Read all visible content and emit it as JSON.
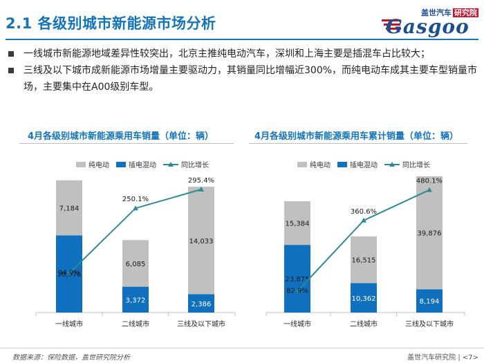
{
  "header": {
    "title": "2.1 各级别城市新能源市场分析",
    "logo_top_text": "盖世汽车",
    "logo_top_highlight": "研究院",
    "logo_word": "Gasgoo"
  },
  "bullets": [
    "一线城市新能源地域差异性较突出，北京主推纯电动汽车，深圳和上海主要是插混车占比较大；",
    "三线及以下城市成新能源市场增量主要驱动力，其销量同比增幅近300%，而纯电动车成其主要车型销量市场，主要集中在A00级别车型。"
  ],
  "colors": {
    "bev": "#c0c0c0",
    "phev": "#1070c0",
    "growth": "#2a8a96",
    "title": "#1474b9"
  },
  "chart_data": [
    {
      "type": "bar",
      "stacked": true,
      "title": "4月各级别城市新能源乘用车销量（单位：辆）",
      "categories": [
        "一线城市",
        "二线城市",
        "三线及以下城市"
      ],
      "legend": [
        "纯电动",
        "插电混动",
        "同比增长"
      ],
      "series": [
        {
          "name": "插电混动",
          "values": [
            10076,
            3372,
            2386
          ],
          "labels": [
            "10,076",
            "3,372",
            "2,386"
          ]
        },
        {
          "name": "纯电动",
          "values": [
            7184,
            6085,
            14033
          ],
          "labels": [
            "7,184",
            "6,085",
            "14,033"
          ]
        }
      ],
      "line": {
        "name": "同比增长",
        "values": [
          94.0,
          250.1,
          295.4
        ],
        "labels": [
          "94.0%",
          "250.1%",
          "295.4%"
        ]
      },
      "ylim": [
        0,
        18500
      ],
      "line_ylim": [
        0,
        340
      ]
    },
    {
      "type": "bar",
      "stacked": true,
      "title": "4月各级别城市新能源乘用车累计销量（单位：辆）",
      "categories": [
        "一线城市",
        "二线城市",
        "三线及以下城市"
      ],
      "legend": [
        "纯电动",
        "插电混动",
        "同比增长"
      ],
      "series": [
        {
          "name": "插电混动",
          "values": [
            23875,
            10362,
            8194
          ],
          "labels": [
            "23,875",
            "10,362",
            "8,194"
          ]
        },
        {
          "name": "纯电动",
          "values": [
            15384,
            16515,
            39876
          ],
          "labels": [
            "15,384",
            "16,515",
            "39,876"
          ]
        }
      ],
      "line": {
        "name": "同比增长",
        "values": [
          82.9,
          360.6,
          480.1
        ],
        "labels": [
          "82.9%",
          "360.6%",
          "480.1%"
        ]
      },
      "ylim": [
        0,
        50000
      ],
      "line_ylim": [
        0,
        555
      ]
    }
  ],
  "footer": {
    "source": "数据来源：保险数据，盖世研究院分析",
    "page": "盖世汽车研究院 | <7>"
  }
}
